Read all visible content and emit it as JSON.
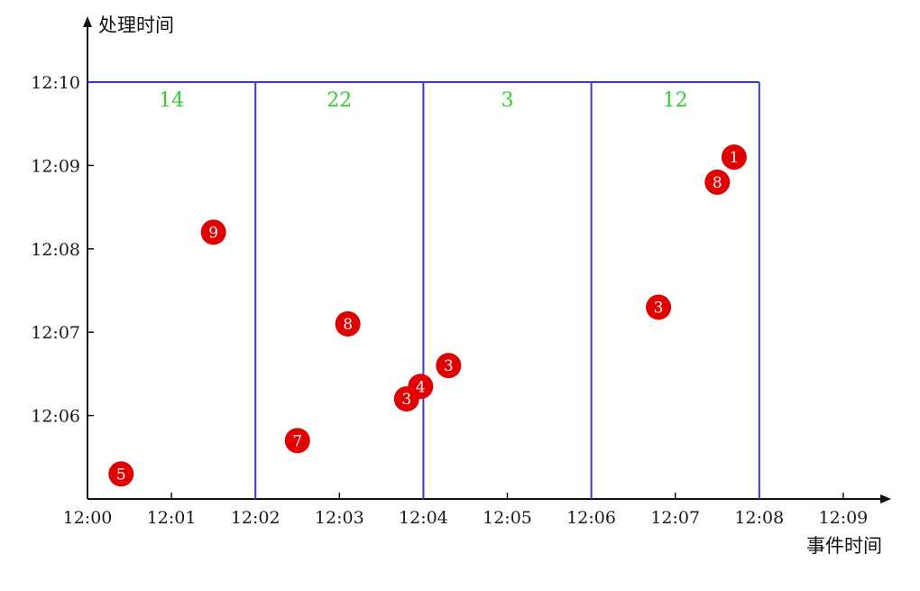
{
  "colors": {
    "axis": "#111111",
    "window_border": "#3a3ac8",
    "window_label": "#33cc33",
    "point_fill": "#e00000",
    "point_text": "#ffffff"
  },
  "chart_data": {
    "type": "scatter",
    "xlabel": "事件时间",
    "ylabel": "处理时间",
    "x_ticks": [
      "12:00",
      "12:01",
      "12:02",
      "12:03",
      "12:04",
      "12:05",
      "12:06",
      "12:07",
      "12:08",
      "12:09"
    ],
    "y_ticks": [
      "12:06",
      "12:07",
      "12:08",
      "12:09",
      "12:10"
    ],
    "xlim": [
      "12:00",
      "12:09.6"
    ],
    "ylim": [
      "12:05",
      "12:10.4"
    ],
    "grid": false,
    "windows": [
      {
        "start": "12:00",
        "end": "12:02",
        "top": "12:10",
        "sum": "14"
      },
      {
        "start": "12:02",
        "end": "12:04",
        "top": "12:10",
        "sum": "22"
      },
      {
        "start": "12:04",
        "end": "12:06",
        "top": "12:10",
        "sum": "3"
      },
      {
        "start": "12:06",
        "end": "12:08",
        "top": "12:10",
        "sum": "12"
      }
    ],
    "points": [
      {
        "event_time": "12:00:24",
        "processing_time": "12:05:18",
        "value": "5"
      },
      {
        "event_time": "12:01:30",
        "processing_time": "12:08:12",
        "value": "9"
      },
      {
        "event_time": "12:02:30",
        "processing_time": "12:05:42",
        "value": "7"
      },
      {
        "event_time": "12:03:06",
        "processing_time": "12:07:06",
        "value": "8"
      },
      {
        "event_time": "12:03:48",
        "processing_time": "12:06:12",
        "value": "3"
      },
      {
        "event_time": "12:03:58",
        "processing_time": "12:06:21",
        "value": "4"
      },
      {
        "event_time": "12:04:18",
        "processing_time": "12:06:36",
        "value": "3"
      },
      {
        "event_time": "12:06:48",
        "processing_time": "12:07:18",
        "value": "3"
      },
      {
        "event_time": "12:07:30",
        "processing_time": "12:08:48",
        "value": "8"
      },
      {
        "event_time": "12:07:42",
        "processing_time": "12:09:06",
        "value": "1"
      }
    ]
  }
}
